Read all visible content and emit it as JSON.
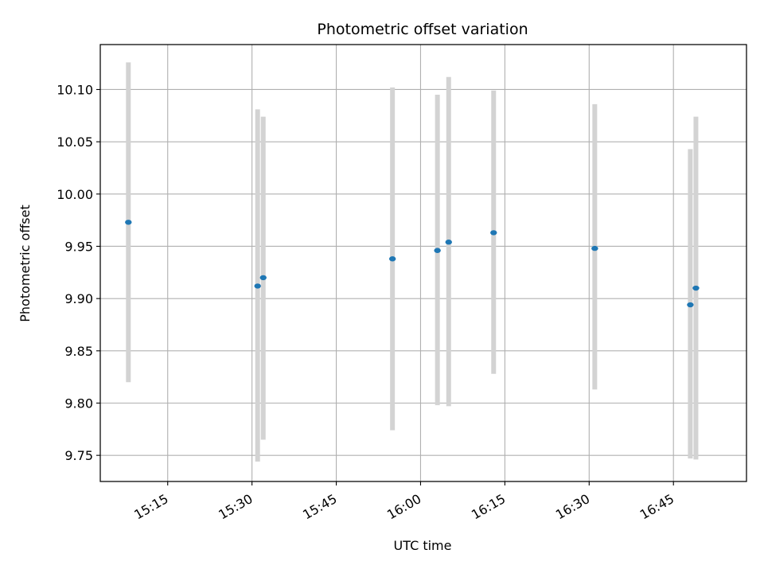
{
  "chart_data": {
    "type": "scatter",
    "title": "Photometric offset variation",
    "xlabel": "UTC time",
    "ylabel": "Photometric offset",
    "x_ticks": [
      "15:15",
      "15:30",
      "15:45",
      "16:00",
      "16:15",
      "16:30",
      "16:45"
    ],
    "y_ticks": [
      "9.75",
      "9.80",
      "9.85",
      "9.90",
      "9.95",
      "10.00",
      "10.05",
      "10.10"
    ],
    "xlim": [
      "15:03",
      "16:58"
    ],
    "ylim": [
      9.725,
      10.143
    ],
    "grid": true,
    "series": [
      {
        "x": [
          "15:08",
          "15:31",
          "15:32",
          "15:55",
          "16:03",
          "16:05",
          "16:13",
          "16:31",
          "16:48",
          "16:49"
        ],
        "y": [
          9.973,
          9.912,
          9.92,
          9.938,
          9.946,
          9.954,
          9.963,
          9.948,
          9.894,
          9.91
        ],
        "y_lower": [
          9.82,
          9.744,
          9.765,
          9.774,
          9.798,
          9.797,
          9.828,
          9.813,
          9.747,
          9.746
        ],
        "y_upper": [
          10.126,
          10.081,
          10.074,
          10.102,
          10.095,
          10.112,
          10.099,
          10.086,
          10.043,
          10.074
        ]
      }
    ],
    "colors": {
      "point": "#1f77b4",
      "errorbar": "#d3d3d3",
      "grid": "#b0b0b0",
      "axes": "#000000"
    }
  }
}
